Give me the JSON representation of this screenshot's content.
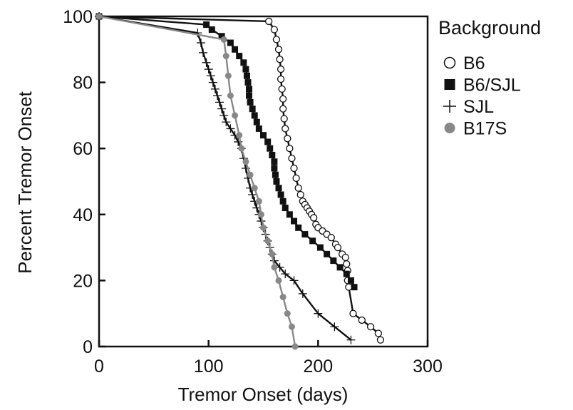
{
  "chart_data": {
    "type": "line",
    "title": "",
    "xlabel": "Tremor Onset (days)",
    "ylabel": "Percent Tremor Onset",
    "xlim": [
      0,
      300
    ],
    "ylim": [
      0,
      100
    ],
    "xticks": [
      0,
      100,
      200,
      300
    ],
    "yticks": [
      0,
      20,
      40,
      60,
      80,
      100
    ],
    "grid": false,
    "legend": {
      "title": "Background",
      "placement": "top-right outside plot"
    },
    "series": [
      {
        "name": "B6",
        "marker": "open-circle",
        "color": "#111111",
        "x": [
          0,
          155,
          160,
          162,
          164,
          165,
          166,
          166,
          167,
          168,
          168,
          169,
          170,
          172,
          174,
          176,
          178,
          180,
          182,
          184,
          186,
          188,
          190,
          192,
          194,
          196,
          198,
          200,
          204,
          208,
          212,
          216,
          218,
          222,
          225,
          226,
          227,
          227,
          228,
          232,
          240,
          248,
          255,
          257
        ],
        "y": [
          100,
          98.5,
          96,
          93,
          90,
          87,
          84,
          81,
          78,
          75,
          72,
          69,
          66,
          63,
          60,
          57,
          54,
          51,
          48,
          46,
          44,
          43,
          42,
          41,
          40,
          39,
          37,
          36,
          35,
          34,
          33,
          31,
          30,
          28,
          27,
          25,
          23,
          20,
          18,
          10,
          8,
          6,
          4,
          2
        ]
      },
      {
        "name": "B6/SJL",
        "marker": "filled-square",
        "color": "#111111",
        "x": [
          0,
          98,
          103,
          112,
          120,
          124,
          128,
          132,
          134,
          135,
          136,
          137,
          137,
          138,
          140,
          142,
          144,
          146,
          150,
          154,
          156,
          158,
          160,
          160,
          161,
          162,
          164,
          166,
          168,
          170,
          174,
          178,
          182,
          188,
          195,
          202,
          208,
          214,
          220,
          226,
          230,
          233
        ],
        "y": [
          100,
          97.5,
          96,
          94,
          92,
          90,
          88,
          86,
          84,
          82,
          80,
          78,
          76,
          74,
          72,
          70,
          68,
          66,
          64,
          62,
          60,
          58,
          56,
          54,
          52,
          50,
          48,
          46,
          44,
          42,
          40,
          38,
          36,
          34,
          32,
          30,
          28,
          26,
          24,
          22,
          20,
          18
        ]
      },
      {
        "name": "SJL",
        "marker": "plus",
        "color": "#111111",
        "x": [
          0,
          90,
          93,
          95,
          98,
          100,
          102,
          104,
          106,
          108,
          110,
          112,
          114,
          116,
          120,
          124,
          127,
          130,
          132,
          134,
          136,
          138,
          140,
          142,
          144,
          146,
          148,
          150,
          152,
          154,
          156,
          158,
          160,
          165,
          170,
          178,
          186,
          200,
          215,
          230
        ],
        "y": [
          100,
          95,
          92,
          89,
          86,
          84,
          82,
          80,
          78,
          76,
          74,
          72,
          70,
          68,
          66,
          64,
          62,
          60,
          57,
          54,
          51,
          48,
          46,
          44,
          42,
          40,
          38,
          36,
          34,
          32,
          30,
          28,
          26,
          24,
          22,
          20,
          16,
          10,
          6,
          2
        ]
      },
      {
        "name": "B17S",
        "marker": "filled-circle",
        "color": "#888888",
        "x": [
          0,
          114,
          116,
          118,
          120,
          124,
          128,
          130,
          134,
          138,
          142,
          146,
          148,
          150,
          154,
          158,
          160,
          164,
          168,
          172,
          176,
          179
        ],
        "y": [
          100,
          93,
          88,
          82,
          76,
          70,
          64,
          60,
          56,
          52,
          48,
          44,
          40,
          36,
          32,
          28,
          24,
          20,
          15,
          10,
          6,
          0
        ]
      }
    ]
  }
}
